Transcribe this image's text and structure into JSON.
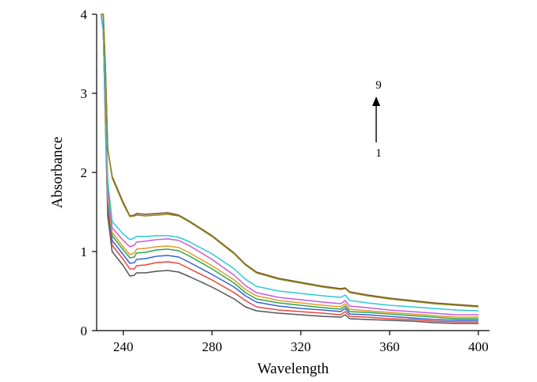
{
  "chart_data": {
    "type": "line",
    "title": "",
    "xlabel": "Wavelength",
    "ylabel": "Absorbance",
    "xlim": [
      228,
      405
    ],
    "ylim": [
      0,
      4
    ],
    "xticks": [
      240,
      280,
      320,
      360,
      400
    ],
    "yticks": [
      0,
      1,
      2,
      3,
      4
    ],
    "grid": false,
    "legend": "none",
    "annotation": {
      "top_label": "9",
      "bottom_label": "1",
      "arrow": "up"
    },
    "series": [
      {
        "color": "#555555",
        "points": [
          [
            230,
            4.0
          ],
          [
            231,
            3.8
          ],
          [
            232,
            2.6
          ],
          [
            233,
            1.45
          ],
          [
            235,
            1.0
          ],
          [
            240,
            0.82
          ],
          [
            243,
            0.69
          ],
          [
            245,
            0.7
          ],
          [
            246,
            0.73
          ],
          [
            250,
            0.73
          ],
          [
            255,
            0.75
          ],
          [
            260,
            0.76
          ],
          [
            265,
            0.74
          ],
          [
            270,
            0.68
          ],
          [
            280,
            0.55
          ],
          [
            290,
            0.4
          ],
          [
            295,
            0.3
          ],
          [
            300,
            0.25
          ],
          [
            310,
            0.22
          ],
          [
            320,
            0.2
          ],
          [
            330,
            0.18
          ],
          [
            338,
            0.17
          ],
          [
            340,
            0.2
          ],
          [
            342,
            0.15
          ],
          [
            350,
            0.14
          ],
          [
            360,
            0.13
          ],
          [
            370,
            0.12
          ],
          [
            380,
            0.1
          ],
          [
            390,
            0.09
          ],
          [
            400,
            0.09
          ]
        ]
      },
      {
        "color": "#e8453c",
        "points": [
          [
            230,
            4.0
          ],
          [
            231,
            3.8
          ],
          [
            232,
            2.6
          ],
          [
            233,
            1.55
          ],
          [
            235,
            1.08
          ],
          [
            240,
            0.9
          ],
          [
            243,
            0.78
          ],
          [
            245,
            0.78
          ],
          [
            246,
            0.82
          ],
          [
            250,
            0.83
          ],
          [
            255,
            0.86
          ],
          [
            260,
            0.87
          ],
          [
            265,
            0.85
          ],
          [
            270,
            0.78
          ],
          [
            280,
            0.64
          ],
          [
            290,
            0.48
          ],
          [
            295,
            0.38
          ],
          [
            300,
            0.3
          ],
          [
            310,
            0.26
          ],
          [
            320,
            0.24
          ],
          [
            330,
            0.22
          ],
          [
            338,
            0.2
          ],
          [
            340,
            0.24
          ],
          [
            342,
            0.18
          ],
          [
            350,
            0.17
          ],
          [
            360,
            0.15
          ],
          [
            370,
            0.14
          ],
          [
            380,
            0.12
          ],
          [
            390,
            0.11
          ],
          [
            400,
            0.11
          ]
        ]
      },
      {
        "color": "#3a60d8",
        "points": [
          [
            230,
            4.0
          ],
          [
            231,
            3.8
          ],
          [
            232,
            2.7
          ],
          [
            233,
            1.6
          ],
          [
            235,
            1.14
          ],
          [
            240,
            0.96
          ],
          [
            243,
            0.85
          ],
          [
            245,
            0.86
          ],
          [
            246,
            0.9
          ],
          [
            250,
            0.91
          ],
          [
            255,
            0.94
          ],
          [
            260,
            0.95
          ],
          [
            265,
            0.93
          ],
          [
            270,
            0.86
          ],
          [
            280,
            0.71
          ],
          [
            290,
            0.55
          ],
          [
            295,
            0.44
          ],
          [
            300,
            0.36
          ],
          [
            310,
            0.31
          ],
          [
            320,
            0.28
          ],
          [
            330,
            0.26
          ],
          [
            338,
            0.24
          ],
          [
            340,
            0.28
          ],
          [
            342,
            0.21
          ],
          [
            350,
            0.2
          ],
          [
            360,
            0.18
          ],
          [
            370,
            0.16
          ],
          [
            380,
            0.14
          ],
          [
            390,
            0.13
          ],
          [
            400,
            0.13
          ]
        ]
      },
      {
        "color": "#2fa64a",
        "points": [
          [
            230,
            4.0
          ],
          [
            231,
            3.8
          ],
          [
            232,
            2.7
          ],
          [
            233,
            1.65
          ],
          [
            235,
            1.2
          ],
          [
            240,
            1.02
          ],
          [
            243,
            0.92
          ],
          [
            245,
            0.93
          ],
          [
            246,
            0.98
          ],
          [
            250,
            0.99
          ],
          [
            255,
            1.02
          ],
          [
            260,
            1.03
          ],
          [
            265,
            1.01
          ],
          [
            270,
            0.94
          ],
          [
            280,
            0.78
          ],
          [
            290,
            0.6
          ],
          [
            295,
            0.48
          ],
          [
            300,
            0.4
          ],
          [
            310,
            0.35
          ],
          [
            320,
            0.32
          ],
          [
            330,
            0.29
          ],
          [
            338,
            0.27
          ],
          [
            340,
            0.31
          ],
          [
            342,
            0.24
          ],
          [
            350,
            0.23
          ],
          [
            360,
            0.21
          ],
          [
            370,
            0.19
          ],
          [
            380,
            0.17
          ],
          [
            390,
            0.15
          ],
          [
            400,
            0.15
          ]
        ]
      },
      {
        "color": "#e39a2c",
        "points": [
          [
            230,
            4.0
          ],
          [
            231,
            3.8
          ],
          [
            232,
            2.75
          ],
          [
            233,
            1.7
          ],
          [
            235,
            1.24
          ],
          [
            240,
            1.06
          ],
          [
            243,
            0.96
          ],
          [
            245,
            0.98
          ],
          [
            246,
            1.03
          ],
          [
            250,
            1.04
          ],
          [
            255,
            1.06
          ],
          [
            260,
            1.07
          ],
          [
            265,
            1.05
          ],
          [
            270,
            0.98
          ],
          [
            280,
            0.82
          ],
          [
            290,
            0.64
          ],
          [
            295,
            0.52
          ],
          [
            300,
            0.44
          ],
          [
            310,
            0.38
          ],
          [
            320,
            0.35
          ],
          [
            330,
            0.32
          ],
          [
            338,
            0.3
          ],
          [
            340,
            0.34
          ],
          [
            342,
            0.27
          ],
          [
            350,
            0.25
          ],
          [
            360,
            0.23
          ],
          [
            370,
            0.21
          ],
          [
            380,
            0.19
          ],
          [
            390,
            0.17
          ],
          [
            400,
            0.17
          ]
        ]
      },
      {
        "color": "#c95bd6",
        "points": [
          [
            230,
            4.0
          ],
          [
            231,
            3.8
          ],
          [
            232,
            2.8
          ],
          [
            233,
            1.8
          ],
          [
            235,
            1.3
          ],
          [
            240,
            1.14
          ],
          [
            243,
            1.06
          ],
          [
            245,
            1.08
          ],
          [
            246,
            1.12
          ],
          [
            250,
            1.13
          ],
          [
            255,
            1.15
          ],
          [
            260,
            1.16
          ],
          [
            265,
            1.14
          ],
          [
            270,
            1.07
          ],
          [
            280,
            0.9
          ],
          [
            290,
            0.7
          ],
          [
            295,
            0.57
          ],
          [
            300,
            0.48
          ],
          [
            310,
            0.42
          ],
          [
            320,
            0.39
          ],
          [
            330,
            0.36
          ],
          [
            338,
            0.34
          ],
          [
            340,
            0.38
          ],
          [
            342,
            0.31
          ],
          [
            350,
            0.29
          ],
          [
            360,
            0.26
          ],
          [
            370,
            0.24
          ],
          [
            380,
            0.22
          ],
          [
            390,
            0.2
          ],
          [
            400,
            0.2
          ]
        ]
      },
      {
        "color": "#2ec9d6",
        "points": [
          [
            230,
            4.0
          ],
          [
            231,
            3.8
          ],
          [
            232,
            2.9
          ],
          [
            233,
            1.9
          ],
          [
            235,
            1.38
          ],
          [
            240,
            1.22
          ],
          [
            243,
            1.15
          ],
          [
            245,
            1.17
          ],
          [
            246,
            1.19
          ],
          [
            250,
            1.19
          ],
          [
            255,
            1.2
          ],
          [
            260,
            1.2
          ],
          [
            265,
            1.18
          ],
          [
            270,
            1.12
          ],
          [
            280,
            0.97
          ],
          [
            290,
            0.78
          ],
          [
            295,
            0.65
          ],
          [
            300,
            0.56
          ],
          [
            310,
            0.5
          ],
          [
            320,
            0.47
          ],
          [
            330,
            0.44
          ],
          [
            338,
            0.42
          ],
          [
            340,
            0.45
          ],
          [
            342,
            0.38
          ],
          [
            350,
            0.35
          ],
          [
            360,
            0.32
          ],
          [
            370,
            0.3
          ],
          [
            380,
            0.28
          ],
          [
            390,
            0.26
          ],
          [
            400,
            0.25
          ]
        ]
      },
      {
        "color": "#7a4a22",
        "points": [
          [
            230,
            4.0
          ],
          [
            231,
            4.0
          ],
          [
            232,
            3.3
          ],
          [
            233,
            2.3
          ],
          [
            235,
            1.95
          ],
          [
            240,
            1.62
          ],
          [
            243,
            1.45
          ],
          [
            245,
            1.46
          ],
          [
            246,
            1.48
          ],
          [
            250,
            1.47
          ],
          [
            255,
            1.48
          ],
          [
            260,
            1.49
          ],
          [
            265,
            1.46
          ],
          [
            270,
            1.38
          ],
          [
            280,
            1.2
          ],
          [
            290,
            0.98
          ],
          [
            295,
            0.84
          ],
          [
            300,
            0.74
          ],
          [
            310,
            0.66
          ],
          [
            320,
            0.61
          ],
          [
            330,
            0.56
          ],
          [
            338,
            0.53
          ],
          [
            340,
            0.54
          ],
          [
            342,
            0.49
          ],
          [
            350,
            0.45
          ],
          [
            360,
            0.41
          ],
          [
            370,
            0.38
          ],
          [
            380,
            0.35
          ],
          [
            390,
            0.33
          ],
          [
            400,
            0.31
          ]
        ]
      },
      {
        "color": "#8d8a1e",
        "points": [
          [
            230,
            4.0
          ],
          [
            231,
            4.0
          ],
          [
            232,
            3.3
          ],
          [
            233,
            2.3
          ],
          [
            235,
            1.93
          ],
          [
            240,
            1.6
          ],
          [
            243,
            1.44
          ],
          [
            245,
            1.45
          ],
          [
            246,
            1.46
          ],
          [
            250,
            1.45
          ],
          [
            255,
            1.46
          ],
          [
            260,
            1.47
          ],
          [
            265,
            1.45
          ],
          [
            270,
            1.37
          ],
          [
            280,
            1.19
          ],
          [
            290,
            0.97
          ],
          [
            295,
            0.83
          ],
          [
            300,
            0.73
          ],
          [
            310,
            0.65
          ],
          [
            320,
            0.6
          ],
          [
            330,
            0.55
          ],
          [
            338,
            0.52
          ],
          [
            340,
            0.53
          ],
          [
            342,
            0.48
          ],
          [
            350,
            0.44
          ],
          [
            360,
            0.4
          ],
          [
            370,
            0.37
          ],
          [
            380,
            0.34
          ],
          [
            390,
            0.32
          ],
          [
            400,
            0.3
          ]
        ]
      }
    ]
  }
}
